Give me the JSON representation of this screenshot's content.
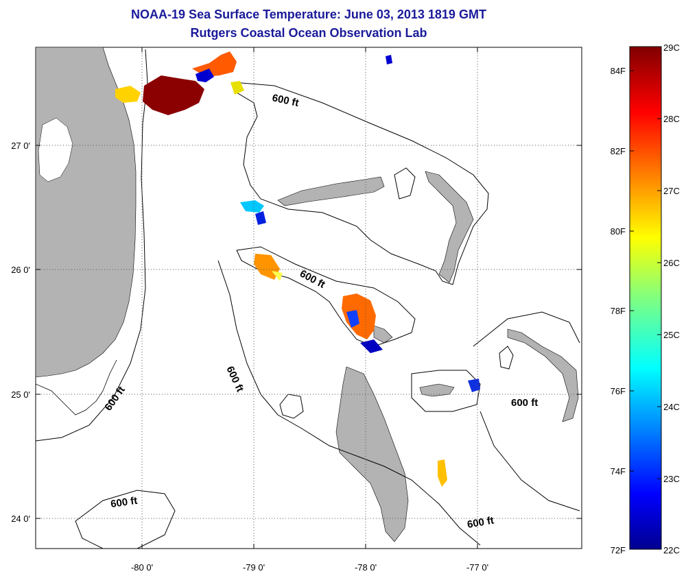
{
  "title": "NOAA-19 Sea Surface Temperature:  June 03, 2013 1819 GMT",
  "subtitle": "Rutgers Coastal Ocean Observation Lab",
  "map": {
    "lon_ticks": [
      "-80 0'",
      "-79 0'",
      "-78 0'",
      "-77 0'"
    ],
    "lat_ticks": [
      "27 0'",
      "26 0'",
      "25 0'",
      "24 0'"
    ],
    "contour_labels": [
      "600 ft",
      "600 ft",
      "600 ft",
      "600 ft",
      "600 ft",
      "600 ft"
    ],
    "colors": {
      "land": "#b3b3b3",
      "cloud_ocean": "#ffffff",
      "contour": "#000000"
    }
  },
  "colorbar": {
    "celsius_labels": [
      "29C",
      "28C",
      "27C",
      "26C",
      "25C",
      "24C",
      "23C",
      "22C"
    ],
    "fahrenheit_labels": [
      "84F",
      "82F",
      "80F",
      "78F",
      "76F",
      "74F",
      "72F"
    ],
    "colormap": "jet"
  }
}
